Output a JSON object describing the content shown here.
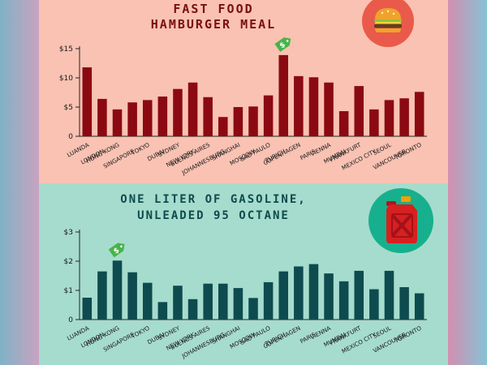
{
  "colors": {
    "top_bg": "#f9c2b3",
    "top_bar": "#8b0a12",
    "top_title": "#7a0e12",
    "top_badge": "#ea5a4a",
    "bottom_bg": "#a6dccd",
    "bottom_bar": "#0e4b4f",
    "bottom_title": "#0f4a4e",
    "bottom_badge": "#17b08e",
    "tag_bg": "#46b549",
    "axis": "#222222",
    "text": "#1a1a1a"
  },
  "icons": {
    "top_badge": "hamburger-icon",
    "bottom_badge": "gas-can-icon",
    "tag": "dollar-price-tag-icon"
  },
  "chart_data": [
    {
      "type": "bar",
      "title_lines": [
        "FAST FOOD",
        "HAMBURGER MEAL"
      ],
      "categories": [
        "LUANDA",
        "LONDON",
        "HONG KONG",
        "SINGAPORE",
        "TOKYO",
        "DUBAI",
        "SYDNEY",
        "NEW YORK",
        "BUENOS AIRES",
        "JOHANNESBURG",
        "SHANGHAI",
        "MOSCOW",
        "SÃO PAULO",
        "ZURICH",
        "COPENHAGEN",
        "PARIS",
        "VIENNA",
        "MUMBAI",
        "FRANKFURT",
        "MEXICO CITY",
        "SEOUL",
        "VANCOUVER",
        "TORONTO"
      ],
      "values": [
        11.8,
        6.4,
        4.6,
        5.8,
        6.2,
        6.8,
        8.1,
        9.2,
        6.7,
        3.3,
        5.0,
        5.1,
        7.0,
        13.9,
        10.3,
        10.1,
        9.2,
        4.3,
        8.6,
        4.6,
        6.2,
        6.5,
        7.6
      ],
      "ylim": [
        0,
        15
      ],
      "yticks": [
        0,
        5,
        10,
        15
      ],
      "ytick_labels": [
        "0",
        "$5",
        "$10",
        "$15"
      ],
      "highlight_index": 13
    },
    {
      "type": "bar",
      "title_lines": [
        "ONE LITER OF GASOLINE,",
        "UNLEADED 95 OCTANE"
      ],
      "categories": [
        "LUANDA",
        "LONDON",
        "HONG KONG",
        "SINGAPORE",
        "TOKYO",
        "DUBAI",
        "SYDNEY",
        "NEW YORK",
        "BUENOS AIRES",
        "JOHANNESBURG",
        "SHANGHAI",
        "MOSCOW",
        "SÃO PAULO",
        "ZURICH",
        "COPENHAGEN",
        "PARIS",
        "VIENNA",
        "MUMBAI",
        "FRANKFURT",
        "MEXICO CITY",
        "SEOUL",
        "VANCOUVER",
        "TORONTO"
      ],
      "values": [
        0.75,
        1.65,
        2.02,
        1.62,
        1.26,
        0.6,
        1.16,
        0.7,
        1.23,
        1.23,
        1.08,
        0.74,
        1.28,
        1.65,
        1.82,
        1.9,
        1.58,
        1.31,
        1.67,
        1.04,
        1.67,
        1.11,
        0.9
      ],
      "ylim": [
        0,
        3
      ],
      "yticks": [
        0,
        1,
        2,
        3
      ],
      "ytick_labels": [
        "0",
        "$1",
        "$2",
        "$3"
      ],
      "highlight_index": 2
    }
  ]
}
